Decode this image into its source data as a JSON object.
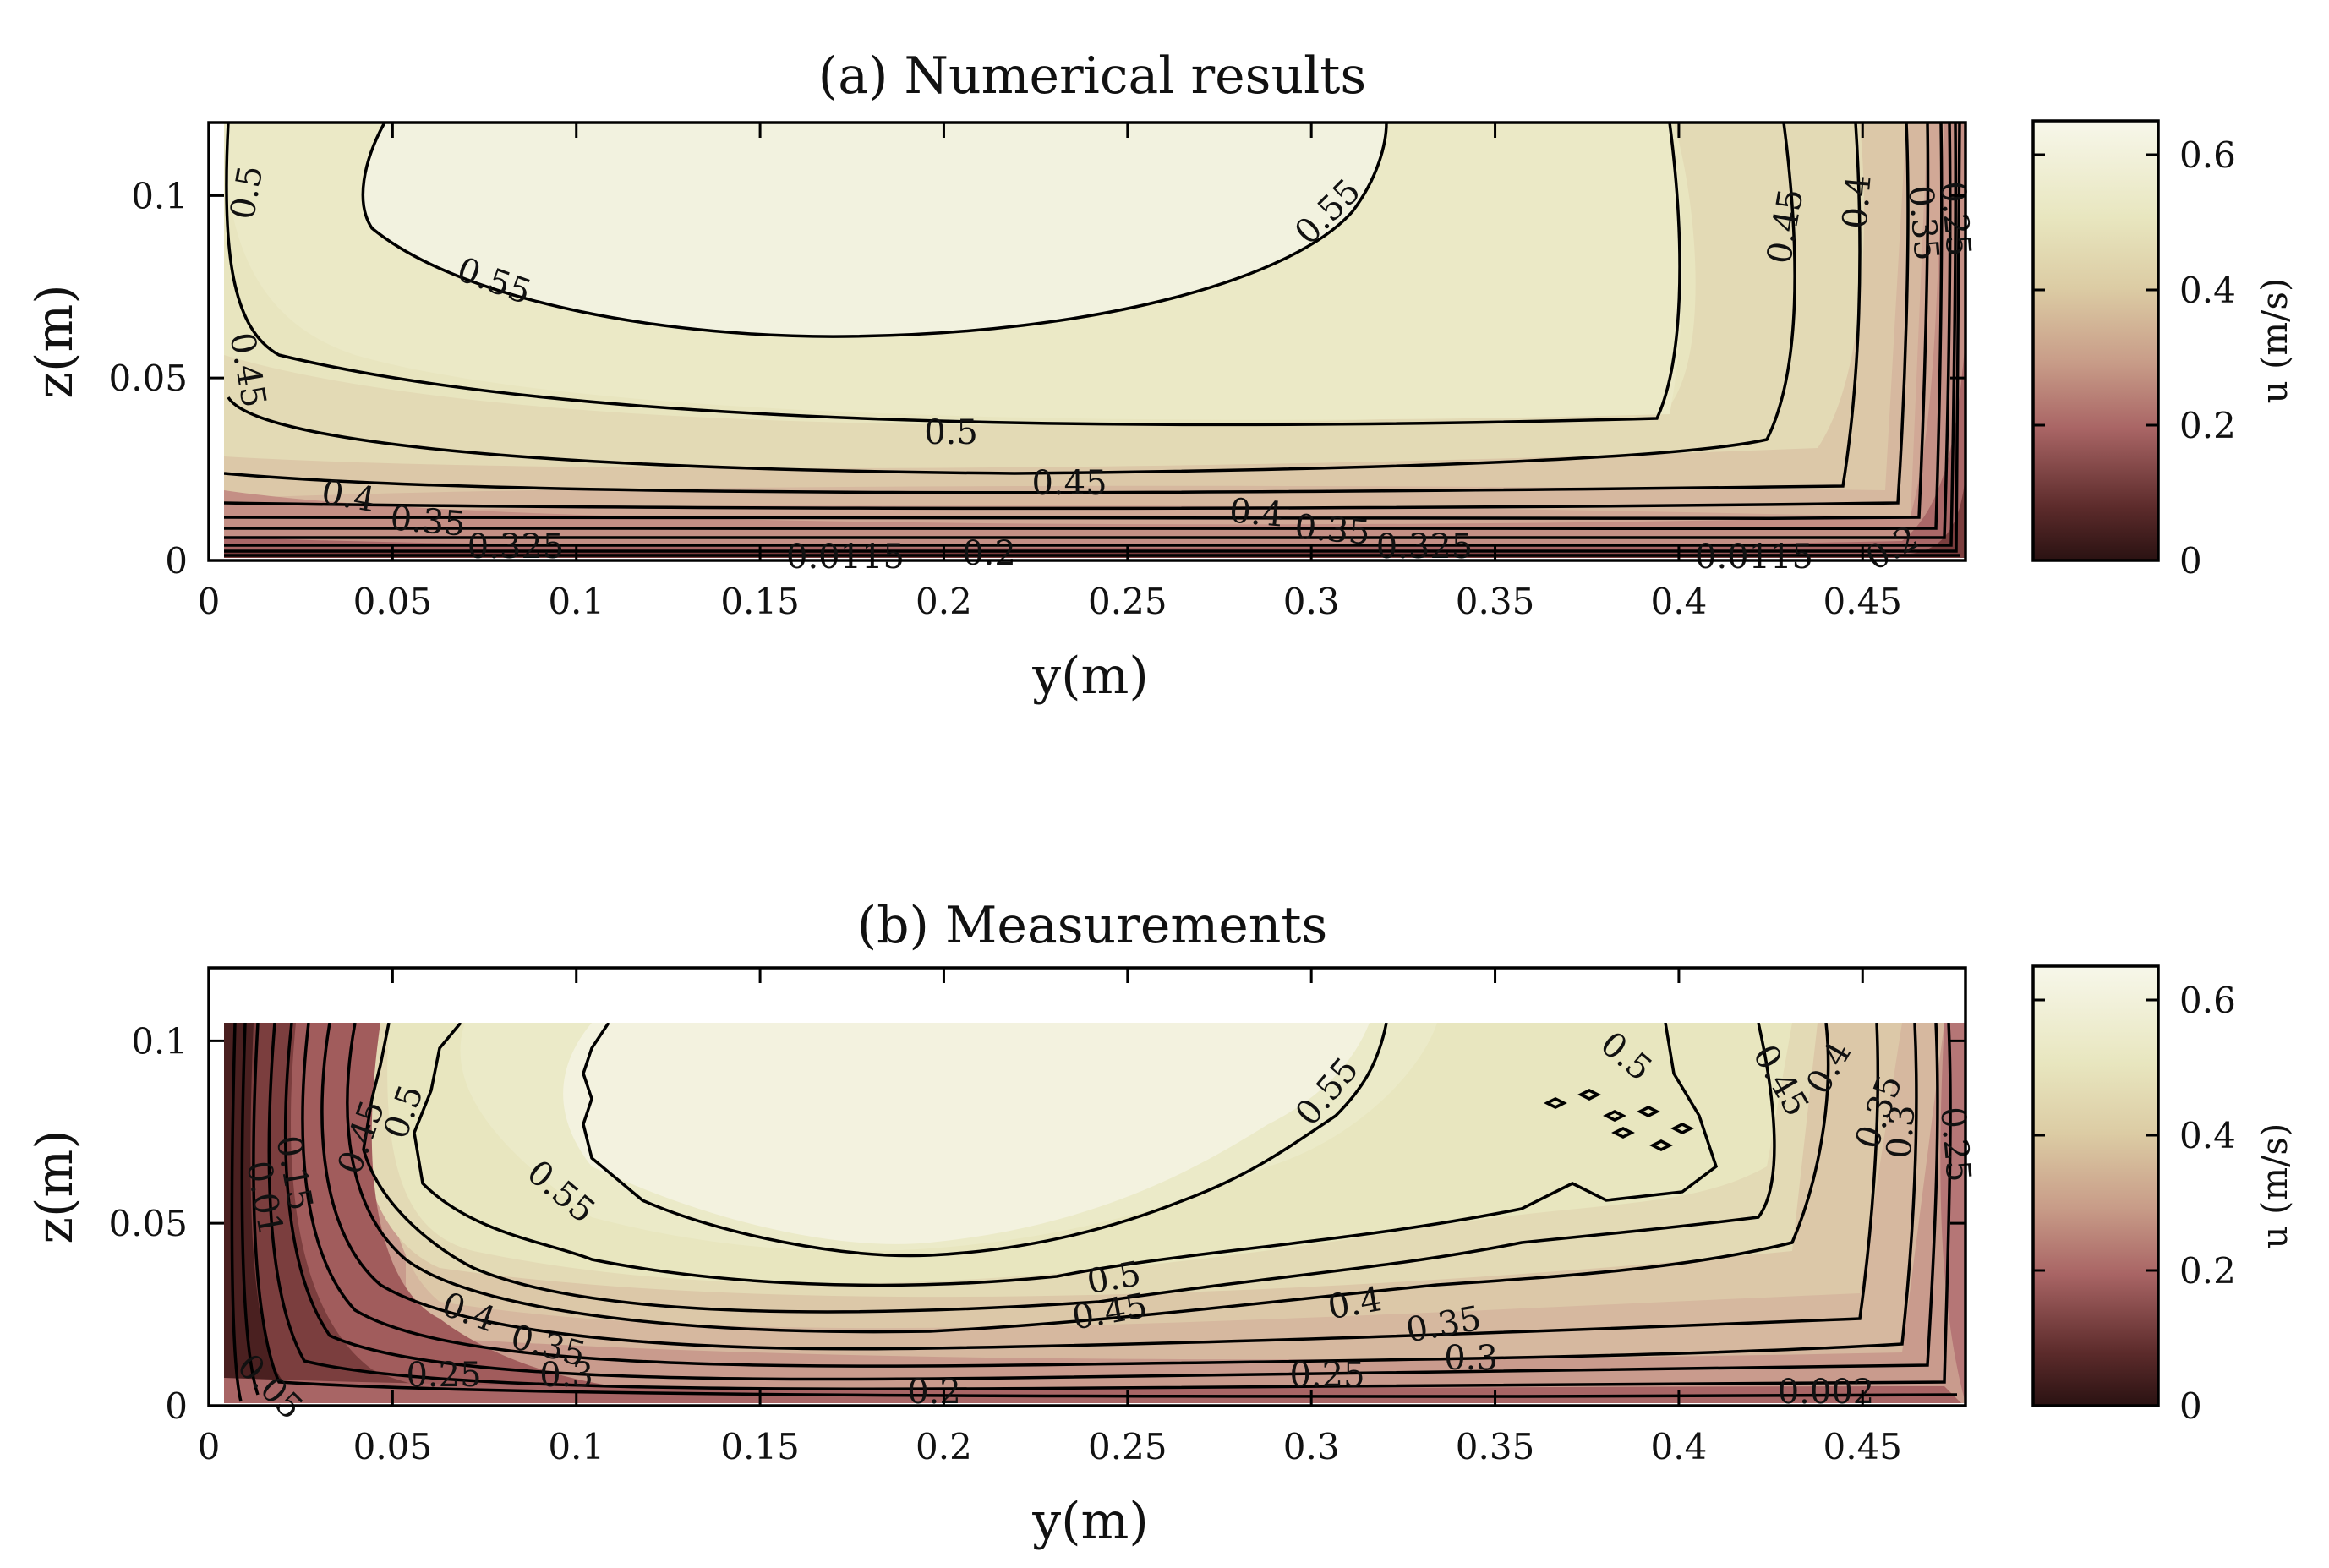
{
  "chart_data": [
    {
      "type": "contour",
      "title": "(a) Numerical results",
      "xlabel": "y(m)",
      "ylabel": "z(m)",
      "xlim": [
        0,
        0.48
      ],
      "ylim": [
        0,
        0.12
      ],
      "xticks": [
        "0",
        "0.05",
        "0.1",
        "0.15",
        "0.2",
        "0.25",
        "0.3",
        "0.35",
        "0.4",
        "0.45"
      ],
      "yticks": [
        "0",
        "0.05",
        "0.1"
      ],
      "colorbar": {
        "label": "u (m/s)",
        "range": [
          0,
          0.65
        ],
        "ticks": [
          "0",
          "0.2",
          "0.4",
          "0.6"
        ]
      },
      "contour_levels": [
        0.05,
        0.1,
        0.15,
        0.2,
        0.25,
        0.3,
        0.35,
        0.4,
        0.45,
        0.5,
        0.55
      ],
      "contour_labels": [
        "0.5",
        "0.55",
        "0.55",
        "0.45",
        "0.5",
        "0.45",
        "0.4",
        "0.35",
        "0.325",
        "0.4",
        "0.35",
        "0.325",
        "0.0115",
        "0.2",
        "0.0115",
        "0.2",
        "0.45",
        "0.4",
        "0.35",
        "0.25"
      ]
    },
    {
      "type": "contour",
      "title": "(b) Measurements",
      "xlabel": "y(m)",
      "ylabel": "z(m)",
      "xlim": [
        0,
        0.48
      ],
      "ylim": [
        0,
        0.12
      ],
      "xticks": [
        "0",
        "0.05",
        "0.1",
        "0.15",
        "0.2",
        "0.25",
        "0.3",
        "0.35",
        "0.4",
        "0.45"
      ],
      "yticks": [
        "0",
        "0.05",
        "0.1"
      ],
      "colorbar": {
        "label": "u (m/s)",
        "range": [
          0,
          0.65
        ],
        "ticks": [
          "0",
          "0.2",
          "0.4",
          "0.6"
        ]
      },
      "contour_levels": [
        0.05,
        0.1,
        0.15,
        0.2,
        0.25,
        0.3,
        0.35,
        0.4,
        0.45,
        0.5,
        0.55
      ],
      "contour_labels": [
        "0.45",
        "0.5",
        "0.55",
        "0.55",
        "0.5",
        "0.45",
        "0.5",
        "0.45",
        "0.4",
        "0.4",
        "0.35",
        "0.3",
        "0.25",
        "0.25",
        "0.35",
        "0.3",
        "0.01",
        "0.05",
        "0.15",
        "0.2",
        "0.002",
        "0.4",
        "0.35",
        "0.3",
        "0.25"
      ]
    }
  ]
}
